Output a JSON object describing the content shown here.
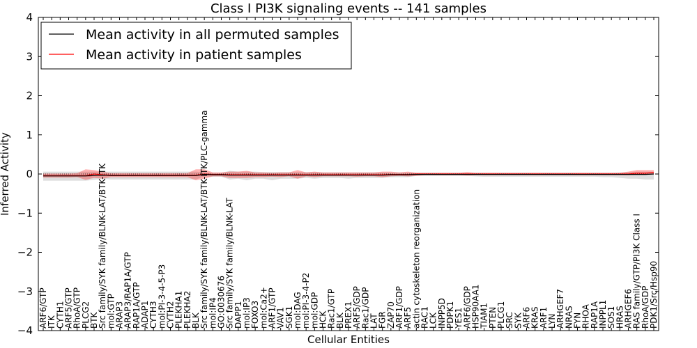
{
  "chart_data": {
    "type": "line",
    "title": "Class I PI3K signaling events -- 141 samples",
    "xlabel": "Cellular Entities",
    "ylabel": "Inferred Activity",
    "ylim": [
      -4,
      4
    ],
    "yticks": [
      -4,
      -3,
      -2,
      -1,
      0,
      1,
      2,
      3,
      4
    ],
    "ytick_labels": [
      "−4",
      "−3",
      "−2",
      "−1",
      "0",
      "1",
      "2",
      "3",
      "4"
    ],
    "legend_position": "top-left",
    "series": [
      {
        "name": "Mean activity in all permuted samples",
        "color": "#000000"
      },
      {
        "name": "Mean activity in patient samples",
        "color": "#ff0000"
      }
    ],
    "labels": [
      "ARF6/GTP",
      "ITK",
      "CYTH1",
      "ARF5/GTP",
      "RhoA/GTP",
      "PLCG2",
      "BTK",
      "Src family/SYK family/BLNK-LAT/BTK-ITK",
      "mol:GTP",
      "ARAP3",
      "ARAP3/RAP1A/GTP",
      "RAP1A/GTP",
      "ADAP1",
      "CYTH3",
      "mol:PI-3-4-5-P3",
      "CYTH2",
      "PLEKHA1",
      "PLEKHA2",
      "BLK",
      "Src family/SYK family/BLNK-LAT/BTK-ITK/PLC-gamma",
      "mol:IP4",
      "GO:0030676",
      "Src family/SYK family/BLNK-LAT",
      "DAPP1",
      "mol:IP3",
      "FOXO3",
      "mol:Ca2+",
      "ARF1/GTP",
      "VAV1",
      "SGK1",
      "mol:DAG",
      "mol:PI-3-4-P2",
      "mol:GDP",
      "HCK",
      "Rac1/GTP",
      "BLK",
      "PREX1",
      "ARF5/GDP",
      "Rac1/GDP",
      "LAT",
      "FGR",
      "ZAP70",
      "ARF1/GDP",
      "ARF5",
      "actin cytoskeleton reorganization",
      "RAC1",
      "LCK",
      "INPP5D",
      "PDPK1",
      "YES1",
      "ARF6/GDP",
      "HSP90AA1",
      "TIAM1",
      "PTEN",
      "PLCG1",
      "SRC",
      "SYK",
      "ARF6",
      "KRAS",
      "ARF1",
      "LYN",
      "ARHGEF7",
      "NRAS",
      "FYN",
      "RHOA",
      "RAP1A",
      "INPPL1",
      "SOS1",
      "HRAS",
      "ARHGEF6",
      "RAS family/GTP/PI3K Class I",
      "RhoA/GDP",
      "PDK1/Src/Hsp90"
    ],
    "patient_mean": [
      -0.04,
      -0.04,
      -0.04,
      -0.04,
      -0.04,
      -0.04,
      0.0,
      -0.02,
      -0.03,
      -0.03,
      -0.03,
      -0.03,
      -0.03,
      -0.03,
      -0.03,
      -0.03,
      -0.03,
      -0.03,
      -0.03,
      0.0,
      -0.01,
      -0.01,
      -0.02,
      -0.02,
      -0.02,
      -0.02,
      -0.02,
      -0.02,
      -0.02,
      -0.02,
      -0.02,
      -0.02,
      -0.02,
      -0.02,
      -0.02,
      -0.02,
      -0.02,
      -0.02,
      -0.02,
      -0.02,
      -0.02,
      -0.01,
      -0.01,
      -0.01,
      0.0,
      0.0,
      0.0,
      0.0,
      0.0,
      0.0,
      0.0,
      0.0,
      0.0,
      0.0,
      0.0,
      0.0,
      0.0,
      0.0,
      0.0,
      0.0,
      0.0,
      0.0,
      0.0,
      0.0,
      0.0,
      0.0,
      0.0,
      0.0,
      0.0,
      0.0,
      0.02,
      0.02,
      0.04
    ],
    "patient_band": [
      [
        -0.09,
        0.01
      ],
      [
        -0.09,
        0.01
      ],
      [
        -0.09,
        0.01
      ],
      [
        -0.09,
        0.01
      ],
      [
        -0.08,
        0.02
      ],
      [
        -0.15,
        0.12
      ],
      [
        -0.1,
        0.1
      ],
      [
        -0.12,
        0.06
      ],
      [
        -0.08,
        0.02
      ],
      [
        -0.08,
        0.02
      ],
      [
        -0.08,
        0.02
      ],
      [
        -0.08,
        0.02
      ],
      [
        -0.08,
        0.02
      ],
      [
        -0.08,
        0.02
      ],
      [
        -0.08,
        0.02
      ],
      [
        -0.08,
        0.02
      ],
      [
        -0.08,
        0.02
      ],
      [
        -0.08,
        0.02
      ],
      [
        -0.16,
        0.12
      ],
      [
        -0.12,
        0.12
      ],
      [
        -0.06,
        0.04
      ],
      [
        -0.06,
        0.04
      ],
      [
        -0.1,
        0.06
      ],
      [
        -0.1,
        0.06
      ],
      [
        -0.1,
        0.08
      ],
      [
        -0.08,
        0.04
      ],
      [
        -0.08,
        0.04
      ],
      [
        -0.07,
        0.03
      ],
      [
        -0.08,
        0.04
      ],
      [
        -0.06,
        0.04
      ],
      [
        -0.12,
        0.1
      ],
      [
        -0.06,
        0.04
      ],
      [
        -0.08,
        0.06
      ],
      [
        -0.06,
        0.04
      ],
      [
        -0.06,
        0.04
      ],
      [
        -0.06,
        0.04
      ],
      [
        -0.06,
        0.04
      ],
      [
        -0.07,
        0.04
      ],
      [
        -0.06,
        0.04
      ],
      [
        -0.06,
        0.04
      ],
      [
        -0.08,
        0.06
      ],
      [
        -0.06,
        0.06
      ],
      [
        -0.05,
        0.04
      ],
      [
        -0.06,
        0.06
      ],
      [
        -0.05,
        0.03
      ],
      [
        -0.03,
        0.03
      ],
      [
        -0.03,
        0.03
      ],
      [
        -0.03,
        0.03
      ],
      [
        -0.03,
        0.03
      ],
      [
        -0.03,
        0.03
      ],
      [
        -0.04,
        0.05
      ],
      [
        -0.03,
        0.03
      ],
      [
        -0.03,
        0.03
      ],
      [
        -0.03,
        0.03
      ],
      [
        -0.03,
        0.03
      ],
      [
        -0.03,
        0.03
      ],
      [
        -0.03,
        0.03
      ],
      [
        -0.03,
        0.03
      ],
      [
        -0.03,
        0.03
      ],
      [
        -0.03,
        0.03
      ],
      [
        -0.03,
        0.03
      ],
      [
        -0.03,
        0.03
      ],
      [
        -0.03,
        0.03
      ],
      [
        -0.03,
        0.03
      ],
      [
        -0.03,
        0.03
      ],
      [
        -0.03,
        0.03
      ],
      [
        -0.03,
        0.03
      ],
      [
        -0.03,
        0.03
      ],
      [
        -0.03,
        0.03
      ],
      [
        -0.03,
        0.06
      ],
      [
        -0.02,
        0.1
      ],
      [
        -0.02,
        0.1
      ],
      [
        -0.01,
        0.1
      ]
    ],
    "permuted_mean": [
      -0.05,
      -0.05,
      -0.05,
      -0.05,
      -0.05,
      -0.05,
      -0.04,
      -0.03,
      -0.04,
      -0.04,
      -0.04,
      -0.04,
      -0.04,
      -0.04,
      -0.04,
      -0.04,
      -0.04,
      -0.04,
      -0.04,
      -0.01,
      -0.02,
      -0.02,
      -0.03,
      -0.03,
      -0.03,
      -0.03,
      -0.03,
      -0.03,
      -0.03,
      -0.03,
      -0.03,
      -0.03,
      -0.03,
      -0.03,
      -0.03,
      -0.03,
      -0.03,
      -0.03,
      -0.03,
      -0.03,
      -0.03,
      -0.02,
      -0.02,
      -0.02,
      -0.01,
      -0.01,
      -0.01,
      -0.01,
      -0.01,
      -0.01,
      -0.01,
      -0.01,
      -0.01,
      -0.01,
      -0.01,
      -0.01,
      -0.01,
      -0.01,
      -0.01,
      -0.01,
      -0.01,
      -0.01,
      -0.01,
      -0.01,
      -0.01,
      -0.01,
      -0.01,
      -0.01,
      -0.01,
      -0.01,
      -0.01,
      -0.01,
      0.0
    ],
    "permuted_band": [
      [
        -0.17,
        0.06
      ],
      [
        -0.17,
        0.06
      ],
      [
        -0.17,
        0.06
      ],
      [
        -0.17,
        0.06
      ],
      [
        -0.17,
        0.06
      ],
      [
        -0.17,
        0.06
      ],
      [
        -0.15,
        0.06
      ],
      [
        -0.12,
        0.06
      ],
      [
        -0.14,
        0.06
      ],
      [
        -0.14,
        0.06
      ],
      [
        -0.14,
        0.06
      ],
      [
        -0.14,
        0.06
      ],
      [
        -0.14,
        0.06
      ],
      [
        -0.14,
        0.06
      ],
      [
        -0.14,
        0.06
      ],
      [
        -0.14,
        0.06
      ],
      [
        -0.14,
        0.06
      ],
      [
        -0.14,
        0.06
      ],
      [
        -0.14,
        0.06
      ],
      [
        -0.06,
        0.04
      ],
      [
        -0.07,
        0.03
      ],
      [
        -0.07,
        0.03
      ],
      [
        -0.14,
        0.08
      ],
      [
        -0.12,
        0.06
      ],
      [
        -0.16,
        0.06
      ],
      [
        -0.12,
        0.06
      ],
      [
        -0.12,
        0.05
      ],
      [
        -0.16,
        0.05
      ],
      [
        -0.12,
        0.05
      ],
      [
        -0.12,
        0.05
      ],
      [
        -0.12,
        0.05
      ],
      [
        -0.1,
        0.05
      ],
      [
        -0.12,
        0.05
      ],
      [
        -0.1,
        0.04
      ],
      [
        -0.1,
        0.04
      ],
      [
        -0.1,
        0.04
      ],
      [
        -0.12,
        0.04
      ],
      [
        -0.1,
        0.04
      ],
      [
        -0.1,
        0.04
      ],
      [
        -0.1,
        0.04
      ],
      [
        -0.1,
        0.04
      ],
      [
        -0.08,
        0.04
      ],
      [
        -0.08,
        0.04
      ],
      [
        -0.08,
        0.04
      ],
      [
        -0.05,
        0.03
      ],
      [
        -0.05,
        0.03
      ],
      [
        -0.05,
        0.03
      ],
      [
        -0.05,
        0.03
      ],
      [
        -0.05,
        0.03
      ],
      [
        -0.05,
        0.03
      ],
      [
        -0.05,
        0.03
      ],
      [
        -0.06,
        0.03
      ],
      [
        -0.07,
        0.03
      ],
      [
        -0.07,
        0.03
      ],
      [
        -0.07,
        0.03
      ],
      [
        -0.07,
        0.03
      ],
      [
        -0.07,
        0.03
      ],
      [
        -0.07,
        0.03
      ],
      [
        -0.07,
        0.03
      ],
      [
        -0.07,
        0.03
      ],
      [
        -0.07,
        0.03
      ],
      [
        -0.07,
        0.03
      ],
      [
        -0.07,
        0.03
      ],
      [
        -0.07,
        0.03
      ],
      [
        -0.07,
        0.03
      ],
      [
        -0.07,
        0.03
      ],
      [
        -0.08,
        0.03
      ],
      [
        -0.08,
        0.03
      ],
      [
        -0.1,
        0.04
      ],
      [
        -0.12,
        0.05
      ],
      [
        -0.12,
        0.06
      ],
      [
        -0.14,
        0.06
      ],
      [
        -0.14,
        0.06
      ]
    ]
  }
}
